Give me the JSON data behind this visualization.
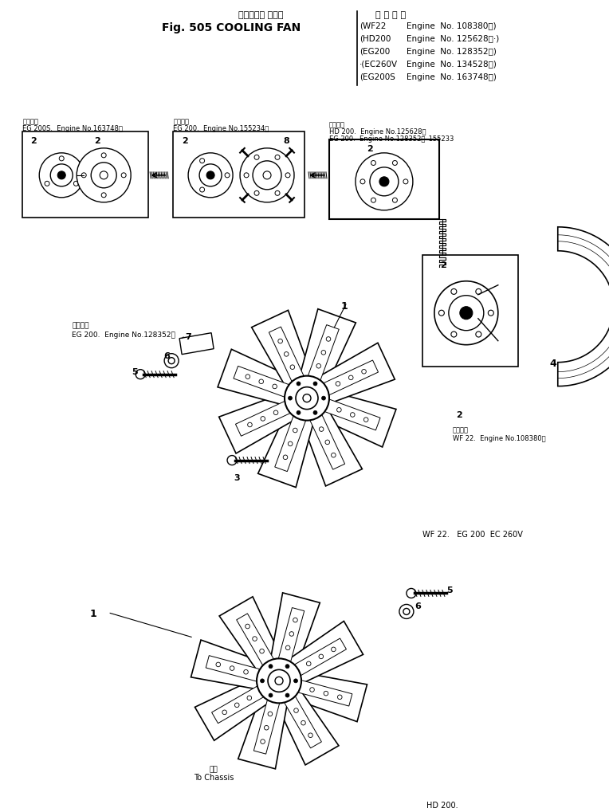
{
  "title_japanese": "クーリング ファン",
  "title_english": "Fig. 505 COOLING FAN",
  "bg_color": "#ffffff",
  "spec_title": "適 用 号 機",
  "specs": [
    [
      "WF22",
      "Engine  No. 108380～)"
    ],
    [
      "HD200",
      "Engine  No. 125628～·)"
    ],
    [
      "EG200",
      "Engine  No. 128352～)"
    ],
    [
      "EC260V",
      "Engine  No. 134528～)"
    ],
    [
      "EG200S",
      "Engine  No. 163748～)"
    ]
  ],
  "note_eg200": "適用号機\nEG 200.  Engine No.128352～",
  "note_wf22": "適用号機\nWF 22.  Engine No.108380～",
  "note_bottom": "WF 22.   EG 200  EC 260V",
  "note_hd200": "HD 200.",
  "to_chassis": "重錢\nTo Chassis"
}
